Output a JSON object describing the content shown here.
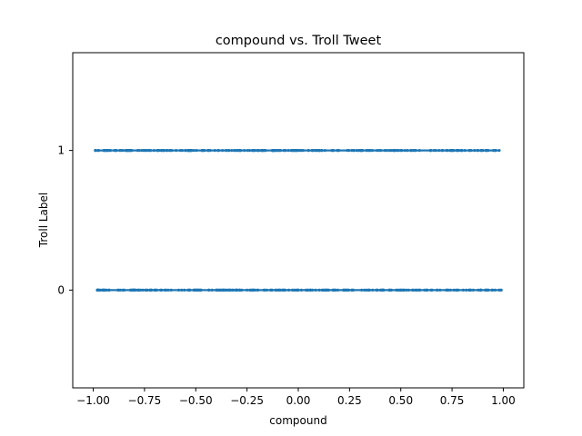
{
  "chart_data": {
    "type": "scatter",
    "title": "compound vs. Troll Tweet",
    "xlabel": "compound",
    "ylabel": "Troll Label",
    "xlim": [
      -1.1,
      1.1
    ],
    "ylim": [
      -0.7,
      1.7
    ],
    "xticks": [
      -1.0,
      -0.75,
      -0.5,
      -0.25,
      0.0,
      0.25,
      0.5,
      0.75,
      1.0
    ],
    "xtick_labels": [
      "−1.00",
      "−0.75",
      "−0.50",
      "−0.25",
      "0.00",
      "0.25",
      "0.50",
      "0.75",
      "1.00"
    ],
    "yticks": [
      0,
      1
    ],
    "ytick_labels": [
      "0",
      "1"
    ],
    "grid": false,
    "marker_color": "#1f77b4",
    "series": [
      {
        "label_value": 1,
        "x_min": -0.99,
        "x_max": 0.98,
        "y": 1
      },
      {
        "label_value": 0,
        "x_min": -0.98,
        "x_max": 0.99,
        "y": 0
      }
    ]
  }
}
